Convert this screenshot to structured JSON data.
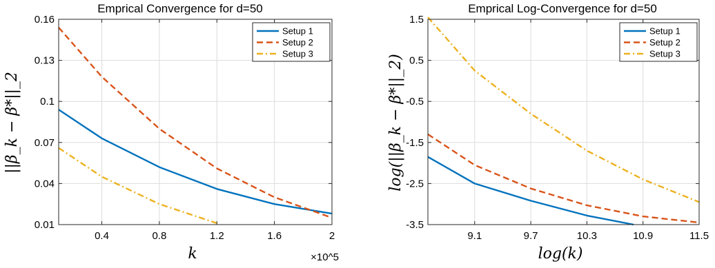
{
  "chart_data": [
    {
      "type": "line",
      "title": "Emprical Convergence for d=50",
      "xlabel": "k",
      "ylabel": "||β_k − β*||_2",
      "xlim": [
        10000,
        200000
      ],
      "ylim": [
        0.01,
        0.16
      ],
      "xticks": [
        40000,
        80000,
        120000,
        160000,
        200000
      ],
      "xtick_labels": [
        "0.4",
        "0.8",
        "1.2",
        "1.6",
        "2"
      ],
      "x_multiplier": "×10^5",
      "yticks": [
        0.01,
        0.04,
        0.07,
        0.1,
        0.13,
        0.16
      ],
      "ytick_labels": [
        "0.01",
        "0.04",
        "0.07",
        "0.1",
        "0.13",
        "0.16"
      ],
      "grid": true,
      "legend": "top-right",
      "series": [
        {
          "name": "Setup 1",
          "color": "#0072BD",
          "dash": "solid",
          "x": [
            10000,
            40000,
            80000,
            120000,
            160000,
            200000
          ],
          "y": [
            0.094,
            0.073,
            0.052,
            0.036,
            0.025,
            0.018
          ]
        },
        {
          "name": "Setup 2",
          "color": "#D95319",
          "dash": "dashed",
          "x": [
            10000,
            40000,
            80000,
            120000,
            160000,
            200000
          ],
          "y": [
            0.154,
            0.118,
            0.08,
            0.051,
            0.03,
            0.015
          ]
        },
        {
          "name": "Setup 3",
          "color": "#EDB120",
          "dash": "dashdot",
          "x": [
            10000,
            40000,
            80000,
            120000
          ],
          "y": [
            0.066,
            0.045,
            0.025,
            0.011
          ]
        }
      ]
    },
    {
      "type": "line",
      "title": "Emprical Log-Convergence for d=50",
      "xlabel": "log(k)",
      "ylabel": "log(||β_k − β*||_2)",
      "xlim": [
        8.6,
        11.5
      ],
      "ylim": [
        -3.5,
        1.5
      ],
      "xticks": [
        9.1,
        9.7,
        10.3,
        10.9,
        11.5
      ],
      "xtick_labels": [
        "9.1",
        "9.7",
        "10.3",
        "10.9",
        "11.5"
      ],
      "yticks": [
        -3.5,
        -2.5,
        -1.5,
        -0.5,
        0.5,
        1.5
      ],
      "ytick_labels": [
        "-3.5",
        "-2.5",
        "-1.5",
        "-0.5",
        "0.5",
        "1.5"
      ],
      "grid": true,
      "legend": "top-right",
      "series": [
        {
          "name": "Setup 1",
          "color": "#0072BD",
          "dash": "solid",
          "x": [
            8.6,
            9.1,
            9.7,
            10.3,
            10.8
          ],
          "y": [
            -1.85,
            -2.5,
            -2.92,
            -3.28,
            -3.5
          ]
        },
        {
          "name": "Setup 2",
          "color": "#D95319",
          "dash": "dashed",
          "x": [
            8.6,
            9.1,
            9.7,
            10.3,
            10.9,
            11.5
          ],
          "y": [
            -1.3,
            -2.05,
            -2.62,
            -3.03,
            -3.3,
            -3.45
          ]
        },
        {
          "name": "Setup 3",
          "color": "#EDB120",
          "dash": "dashdot",
          "x": [
            8.6,
            9.1,
            9.7,
            10.3,
            10.9,
            11.5
          ],
          "y": [
            1.55,
            0.25,
            -0.8,
            -1.7,
            -2.4,
            -2.95
          ]
        }
      ]
    }
  ]
}
